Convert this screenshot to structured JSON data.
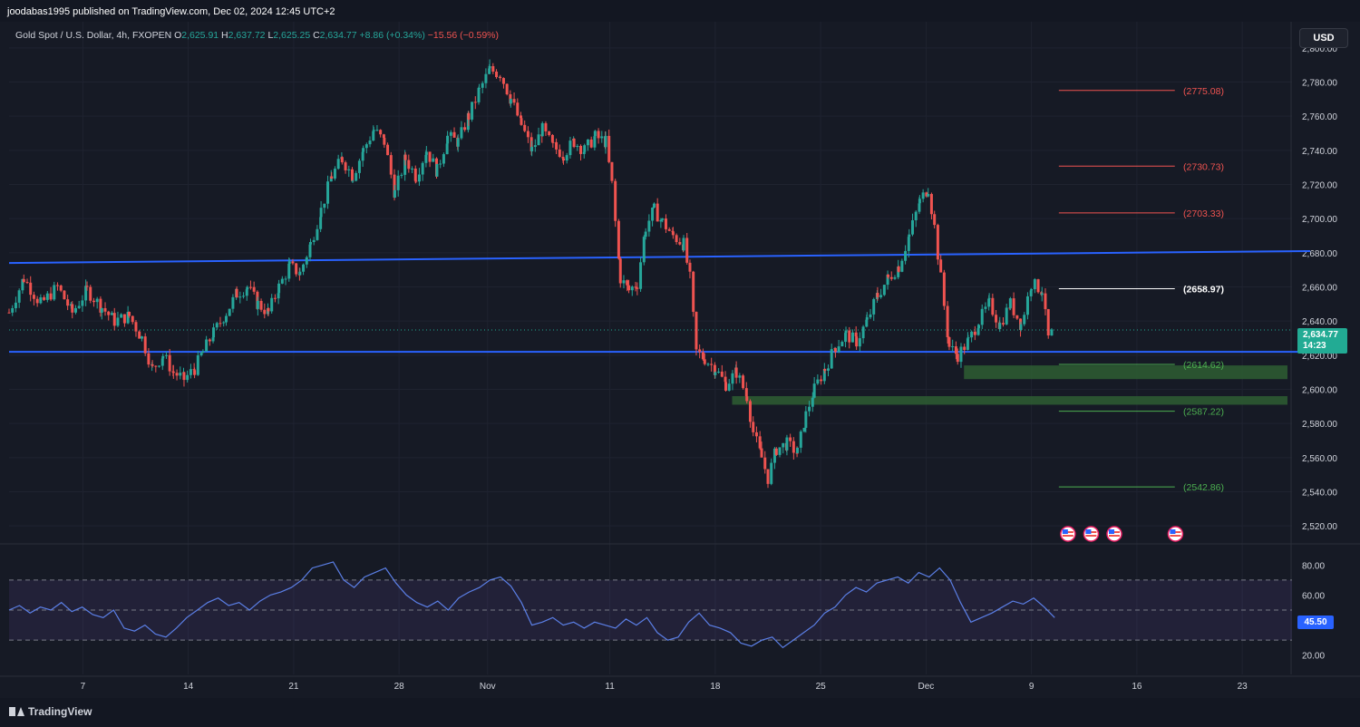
{
  "publisher": "joodabas1995 published on TradingView.com, Dec 02, 2024 12:45 UTC+2",
  "legend": {
    "symbol": "Gold Spot / U.S. Dollar, 4h, FXOPEN",
    "o_label": "O",
    "o_value": "2,625.91",
    "h_label": "H",
    "h_value": "2,637.72",
    "l_label": "L",
    "l_value": "2,625.25",
    "c_label": "C",
    "c_value": "2,634.77",
    "change": "+8.86 (+0.34%)",
    "extra": "−15.56 (−0.59%)"
  },
  "currency_button": "USD",
  "last_price": "2,634.77",
  "countdown": "14:23",
  "rsi_value": "45.50",
  "brand": "TradingView",
  "colors": {
    "background": "#161a25",
    "up": "#26a69a",
    "down": "#ef5350",
    "trendline": "#2962ff",
    "rsi": "#5b7fe6",
    "zone": "#2e5e33",
    "price_tag": "#22ab94"
  },
  "chart_data": {
    "type": "candlestick",
    "price_axis": {
      "min": 2510,
      "max": 2810,
      "ticks": [
        "2,800.00",
        "2,780.00",
        "2,760.00",
        "2,740.00",
        "2,720.00",
        "2,700.00",
        "2,680.00",
        "2,660.00",
        "2,640.00",
        "2,620.00",
        "2,600.00",
        "2,580.00",
        "2,560.00",
        "2,540.00",
        "2,520.00"
      ]
    },
    "time_axis": {
      "labels": [
        "7",
        "14",
        "21",
        "28",
        "Nov",
        "11",
        "18",
        "25",
        "Dec",
        "9",
        "16",
        "23"
      ]
    },
    "price_series": [
      {
        "x": 0,
        "y": 2645
      },
      {
        "x": 0.7,
        "y": 2665
      },
      {
        "x": 1.5,
        "y": 2650
      },
      {
        "x": 2.3,
        "y": 2660
      },
      {
        "x": 3.0,
        "y": 2645
      },
      {
        "x": 3.7,
        "y": 2658
      },
      {
        "x": 4.4,
        "y": 2648
      },
      {
        "x": 5.0,
        "y": 2640
      },
      {
        "x": 5.7,
        "y": 2643
      },
      {
        "x": 6.3,
        "y": 2630
      },
      {
        "x": 6.8,
        "y": 2612
      },
      {
        "x": 7.3,
        "y": 2620
      },
      {
        "x": 7.8,
        "y": 2610
      },
      {
        "x": 8.3,
        "y": 2606
      },
      {
        "x": 8.8,
        "y": 2612
      },
      {
        "x": 9.2,
        "y": 2622
      },
      {
        "x": 9.7,
        "y": 2633
      },
      {
        "x": 10.3,
        "y": 2645
      },
      {
        "x": 10.8,
        "y": 2656
      },
      {
        "x": 11.3,
        "y": 2660
      },
      {
        "x": 11.8,
        "y": 2650
      },
      {
        "x": 12.3,
        "y": 2645
      },
      {
        "x": 12.8,
        "y": 2660
      },
      {
        "x": 13.3,
        "y": 2672
      },
      {
        "x": 13.8,
        "y": 2668
      },
      {
        "x": 14.3,
        "y": 2685
      },
      {
        "x": 14.8,
        "y": 2705
      },
      {
        "x": 15.3,
        "y": 2725
      },
      {
        "x": 15.8,
        "y": 2735
      },
      {
        "x": 16.3,
        "y": 2725
      },
      {
        "x": 16.8,
        "y": 2740
      },
      {
        "x": 17.3,
        "y": 2752
      },
      {
        "x": 17.8,
        "y": 2745
      },
      {
        "x": 18.3,
        "y": 2715
      },
      {
        "x": 18.8,
        "y": 2735
      },
      {
        "x": 19.3,
        "y": 2725
      },
      {
        "x": 19.8,
        "y": 2740
      },
      {
        "x": 20.3,
        "y": 2728
      },
      {
        "x": 20.8,
        "y": 2748
      },
      {
        "x": 21.3,
        "y": 2745
      },
      {
        "x": 21.8,
        "y": 2760
      },
      {
        "x": 22.3,
        "y": 2775
      },
      {
        "x": 22.8,
        "y": 2787
      },
      {
        "x": 23.3,
        "y": 2785
      },
      {
        "x": 23.8,
        "y": 2770
      },
      {
        "x": 24.3,
        "y": 2755
      },
      {
        "x": 24.8,
        "y": 2740
      },
      {
        "x": 25.3,
        "y": 2752
      },
      {
        "x": 25.8,
        "y": 2742
      },
      {
        "x": 26.3,
        "y": 2738
      },
      {
        "x": 26.8,
        "y": 2745
      },
      {
        "x": 27.3,
        "y": 2740
      },
      {
        "x": 27.8,
        "y": 2748
      },
      {
        "x": 28.3,
        "y": 2745
      },
      {
        "x": 28.6,
        "y": 2720
      },
      {
        "x": 29.0,
        "y": 2665
      },
      {
        "x": 29.4,
        "y": 2658
      },
      {
        "x": 29.8,
        "y": 2662
      },
      {
        "x": 30.2,
        "y": 2695
      },
      {
        "x": 30.6,
        "y": 2705
      },
      {
        "x": 31.0,
        "y": 2698
      },
      {
        "x": 31.5,
        "y": 2690
      },
      {
        "x": 32.0,
        "y": 2685
      },
      {
        "x": 32.3,
        "y": 2665
      },
      {
        "x": 32.6,
        "y": 2622
      },
      {
        "x": 33.0,
        "y": 2618
      },
      {
        "x": 33.5,
        "y": 2612
      },
      {
        "x": 34.0,
        "y": 2603
      },
      {
        "x": 34.5,
        "y": 2610
      },
      {
        "x": 35.0,
        "y": 2596
      },
      {
        "x": 35.3,
        "y": 2575
      },
      {
        "x": 35.7,
        "y": 2560
      },
      {
        "x": 36.0,
        "y": 2548
      },
      {
        "x": 36.4,
        "y": 2565
      },
      {
        "x": 36.9,
        "y": 2568
      },
      {
        "x": 37.4,
        "y": 2563
      },
      {
        "x": 37.8,
        "y": 2585
      },
      {
        "x": 38.2,
        "y": 2600
      },
      {
        "x": 38.7,
        "y": 2612
      },
      {
        "x": 39.2,
        "y": 2625
      },
      {
        "x": 39.7,
        "y": 2632
      },
      {
        "x": 40.2,
        "y": 2628
      },
      {
        "x": 40.7,
        "y": 2640
      },
      {
        "x": 41.2,
        "y": 2655
      },
      {
        "x": 41.7,
        "y": 2665
      },
      {
        "x": 42.2,
        "y": 2672
      },
      {
        "x": 42.7,
        "y": 2690
      },
      {
        "x": 43.2,
        "y": 2710
      },
      {
        "x": 43.6,
        "y": 2718
      },
      {
        "x": 43.9,
        "y": 2695
      },
      {
        "x": 44.2,
        "y": 2665
      },
      {
        "x": 44.6,
        "y": 2625
      },
      {
        "x": 45.0,
        "y": 2620
      },
      {
        "x": 45.5,
        "y": 2628
      },
      {
        "x": 46.0,
        "y": 2640
      },
      {
        "x": 46.5,
        "y": 2650
      },
      {
        "x": 47.0,
        "y": 2638
      },
      {
        "x": 47.5,
        "y": 2650
      },
      {
        "x": 48.0,
        "y": 2638
      },
      {
        "x": 48.5,
        "y": 2662
      },
      {
        "x": 49.0,
        "y": 2658
      },
      {
        "x": 49.3,
        "y": 2630
      },
      {
        "x": 49.6,
        "y": 2634.77
      }
    ],
    "rsi": {
      "axis_ticks": [
        "80.00",
        "60.00",
        "40.00",
        "20.00"
      ],
      "overbought": 70,
      "middle": 50,
      "oversold": 30,
      "values": [
        50,
        53,
        48,
        52,
        50,
        55,
        49,
        52,
        47,
        45,
        50,
        38,
        36,
        40,
        34,
        32,
        38,
        45,
        50,
        55,
        58,
        53,
        55,
        50,
        56,
        60,
        62,
        65,
        70,
        78,
        80,
        82,
        70,
        65,
        72,
        75,
        78,
        68,
        60,
        55,
        52,
        56,
        50,
        58,
        62,
        65,
        70,
        72,
        66,
        55,
        40,
        42,
        45,
        40,
        42,
        38,
        42,
        40,
        38,
        44,
        40,
        45,
        35,
        30,
        32,
        42,
        48,
        40,
        38,
        35,
        28,
        26,
        30,
        32,
        25,
        30,
        35,
        40,
        48,
        52,
        60,
        65,
        62,
        68,
        70,
        72,
        68,
        75,
        72,
        78,
        70,
        55,
        42,
        45,
        48,
        52,
        56,
        54,
        58,
        52,
        45
      ]
    }
  },
  "levels": [
    {
      "label": "(2775.08)",
      "price": 2775.08,
      "color": "#ef5350"
    },
    {
      "label": "(2730.73)",
      "price": 2730.73,
      "color": "#ef5350"
    },
    {
      "label": "(2703.33)",
      "price": 2703.33,
      "color": "#ef5350"
    },
    {
      "label": "(2658.97)",
      "price": 2658.97,
      "color": "#ffffff"
    },
    {
      "label": "(2614.62)",
      "price": 2614.62,
      "color": "#4caf50"
    },
    {
      "label": "(2587.22)",
      "price": 2587.22,
      "color": "#4caf50"
    },
    {
      "label": "(2542.86)",
      "price": 2542.86,
      "color": "#4caf50"
    }
  ],
  "zones": [
    {
      "from": 2606,
      "to": 2614
    },
    {
      "from": 2591,
      "to": 2596
    }
  ],
  "trendlines": [
    {
      "x1": 0,
      "y1": 2674,
      "x2": 60,
      "y2": 2681
    },
    {
      "x1": 0,
      "y1": 2622,
      "x2": 60,
      "y2": 2622
    }
  ],
  "event_icons": [
    "us-flag-icon",
    "us-flag-icon",
    "us-flag-icon",
    "us-flag-icon"
  ]
}
